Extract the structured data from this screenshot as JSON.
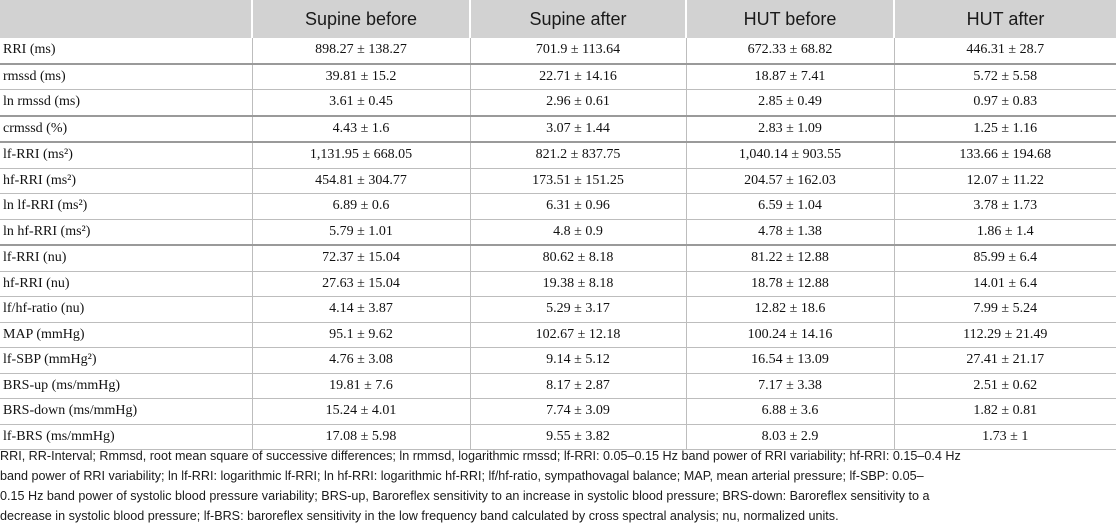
{
  "table": {
    "headers": [
      "",
      "Supine before",
      "Supine after",
      "HUT before",
      "HUT after"
    ],
    "rows": [
      [
        "RRI (ms)",
        "898.27 ± 138.27",
        "701.9 ± 113.64",
        "672.33 ± 68.82",
        "446.31 ± 28.7"
      ],
      [
        "rmssd (ms)",
        "39.81 ± 15.2",
        "22.71 ± 14.16",
        "18.87 ± 7.41",
        "5.72 ± 5.58"
      ],
      [
        "ln rmssd (ms)",
        "3.61 ± 0.45",
        "2.96 ± 0.61",
        "2.85 ± 0.49",
        "0.97 ± 0.83"
      ],
      [
        "crmssd (%)",
        "4.43 ± 1.6",
        "3.07 ± 1.44",
        "2.83 ± 1.09",
        "1.25 ± 1.16"
      ],
      [
        "lf-RRI (ms²)",
        "1,131.95 ± 668.05",
        "821.2 ± 837.75",
        "1,040.14 ± 903.55",
        "133.66 ± 194.68"
      ],
      [
        "hf-RRI (ms²)",
        "454.81 ± 304.77",
        "173.51 ± 151.25",
        "204.57 ± 162.03",
        "12.07 ± 11.22"
      ],
      [
        "ln lf-RRI (ms²)",
        "6.89 ± 0.6",
        "6.31 ± 0.96",
        "6.59 ± 1.04",
        "3.78 ± 1.73"
      ],
      [
        "ln hf-RRI (ms²)",
        "5.79 ± 1.01",
        "4.8 ± 0.9",
        "4.78 ± 1.38",
        "1.86 ± 1.4"
      ],
      [
        "lf-RRI (nu)",
        "72.37 ± 15.04",
        "80.62 ± 8.18",
        "81.22 ± 12.88",
        "85.99 ± 6.4"
      ],
      [
        "hf-RRI (nu)",
        "27.63 ± 15.04",
        "19.38 ± 8.18",
        "18.78 ± 12.88",
        "14.01 ± 6.4"
      ],
      [
        "lf/hf-ratio (nu)",
        "4.14 ± 3.87",
        "5.29 ± 3.17",
        "12.82 ± 18.6",
        "7.99 ± 5.24"
      ],
      [
        "MAP (mmHg)",
        "95.1 ± 9.62",
        "102.67 ± 12.18",
        "100.24 ± 14.16",
        "112.29 ± 21.49"
      ],
      [
        "lf-SBP (mmHg²)",
        "4.76 ± 3.08",
        "9.14 ± 5.12",
        "16.54 ± 13.09",
        "27.41 ± 21.17"
      ],
      [
        "BRS-up (ms/mmHg)",
        "19.81 ± 7.6",
        "8.17 ± 2.87",
        "7.17 ± 3.38",
        "2.51 ± 0.62"
      ],
      [
        "BRS-down (ms/mmHg)",
        "15.24 ± 4.01",
        "7.74 ± 3.09",
        "6.88 ± 3.6",
        "1.82 ± 0.81"
      ],
      [
        "lf-BRS (ms/mmHg)",
        "17.08 ± 5.98",
        "9.55 ± 3.82",
        "8.03 ± 2.9",
        "1.73 ± 1"
      ]
    ]
  },
  "footnote": {
    "lines": [
      "RRI, RR-Interval; Rmmsd, root mean square of successive differences; ln rmmsd, logarithmic rmssd; lf-RRI: 0.05–0.15 Hz band power of RRI variability; hf-RRI: 0.15–0.4 Hz",
      "band power of RRI variability; ln lf-RRI: logarithmic lf-RRI; ln hf-RRI: logarithmic hf-RRI; lf/hf-ratio, sympathovagal balance; MAP, mean arterial pressure; lf-SBP: 0.05–",
      "0.15 Hz band power of systolic blood pressure variability; BRS-up, Baroreflex sensitivity to an increase in systolic blood pressure; BRS-down: Baroreflex sensitivity to a",
      "decrease in systolic blood pressure; lf-BRS: baroreflex sensitivity in the low frequency band calculated by cross spectral analysis; nu, normalized units."
    ]
  }
}
